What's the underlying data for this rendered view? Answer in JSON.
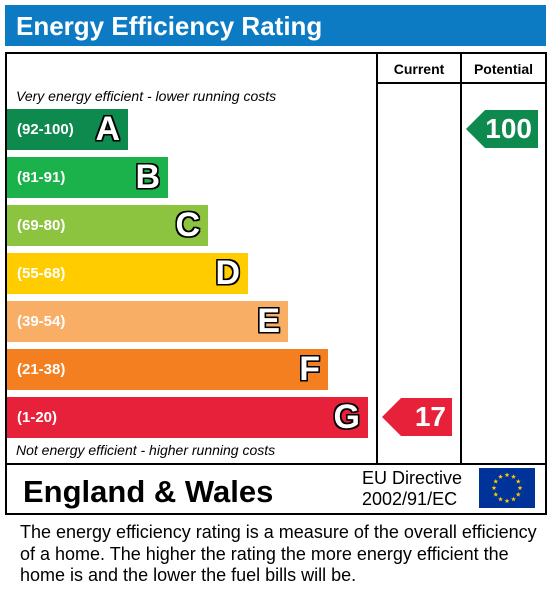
{
  "title": "Energy Efficiency Rating",
  "columns": {
    "current": "Current",
    "potential": "Potential"
  },
  "notes": {
    "top": "Very energy efficient - lower running costs",
    "bottom": "Not energy efficient - higher running costs"
  },
  "bands": [
    {
      "range": "(92-100)",
      "letter": "A",
      "color": "#0e8a4e"
    },
    {
      "range": "(81-91)",
      "letter": "B",
      "color": "#1bb24b"
    },
    {
      "range": "(69-80)",
      "letter": "C",
      "color": "#8cc43f"
    },
    {
      "range": "(55-68)",
      "letter": "D",
      "color": "#ffcc00"
    },
    {
      "range": "(39-54)",
      "letter": "E",
      "color": "#f9ae66"
    },
    {
      "range": "(21-38)",
      "letter": "F",
      "color": "#f37f21"
    },
    {
      "range": "(1-20)",
      "letter": "G",
      "color": "#e8213b"
    }
  ],
  "ratings": {
    "current": {
      "value": "17",
      "band": "G",
      "color": "#e8213b"
    },
    "potential": {
      "value": "100",
      "band": "A",
      "color": "#0e8a4e"
    }
  },
  "footer": {
    "country": "England & Wales",
    "directive_line1": "EU Directive",
    "directive_line2": "2002/91/EC",
    "flag_icon": "eu-flag-icon"
  },
  "description": "The energy efficiency rating is a measure of the overall efficiency of a home.  The higher the rating the more energy efficient the home is and the lower the fuel bills will be.",
  "chart_data": {
    "type": "bar",
    "title": "Energy Efficiency Rating",
    "categories": [
      "(92-100) A",
      "(81-91) B",
      "(69-80) C",
      "(55-68) D",
      "(39-54) E",
      "(21-38) F",
      "(1-20) G"
    ],
    "series": [
      {
        "name": "Current",
        "values": [
          null,
          null,
          null,
          null,
          null,
          null,
          17
        ]
      },
      {
        "name": "Potential",
        "values": [
          100,
          null,
          null,
          null,
          null,
          null,
          null
        ]
      }
    ]
  }
}
